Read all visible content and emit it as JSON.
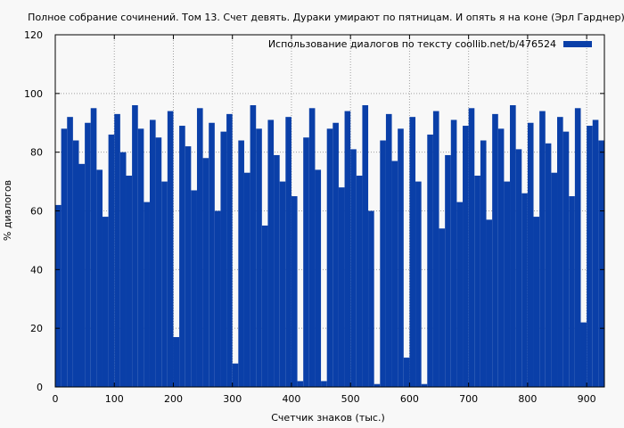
{
  "chart_data": {
    "type": "bar",
    "title": "Полное собрание сочинений. Том 13. Счет девять. Дураки умирают по пятницам. И опять я на коне (Эрл Гарднер)",
    "xlabel": "Счетчик знаков (тыс.)",
    "ylabel": "% диалогов",
    "xlim": [
      0,
      930
    ],
    "ylim": [
      0,
      120
    ],
    "xticks": [
      0,
      100,
      200,
      300,
      400,
      500,
      600,
      700,
      800,
      900
    ],
    "yticks": [
      0,
      20,
      40,
      60,
      80,
      100,
      120
    ],
    "grid": true,
    "legend_position": "top-right",
    "colors": {
      "series": "#0a3fa8",
      "grid": "#a0a0a0",
      "background": "#f8f8f8"
    },
    "series": [
      {
        "name": "Использование диалогов по тексту  coollib.net/b/476524",
        "x": [
          0,
          10,
          20,
          30,
          40,
          50,
          60,
          70,
          80,
          90,
          100,
          110,
          120,
          130,
          140,
          150,
          160,
          170,
          180,
          190,
          200,
          210,
          220,
          230,
          240,
          250,
          260,
          270,
          280,
          290,
          300,
          310,
          320,
          330,
          340,
          350,
          360,
          370,
          380,
          390,
          400,
          410,
          420,
          430,
          440,
          450,
          460,
          470,
          480,
          490,
          500,
          510,
          520,
          530,
          540,
          550,
          560,
          570,
          580,
          590,
          600,
          610,
          620,
          630,
          640,
          650,
          660,
          670,
          680,
          690,
          700,
          710,
          720,
          730,
          740,
          750,
          760,
          770,
          780,
          790,
          800,
          810,
          820,
          830,
          840,
          850,
          860,
          870,
          880,
          890,
          900,
          910,
          920
        ],
        "values": [
          62,
          88,
          92,
          84,
          76,
          90,
          95,
          74,
          58,
          86,
          93,
          80,
          72,
          96,
          88,
          63,
          91,
          85,
          70,
          94,
          17,
          89,
          82,
          67,
          95,
          78,
          90,
          60,
          87,
          93,
          8,
          84,
          73,
          96,
          88,
          55,
          91,
          79,
          70,
          92,
          65,
          2,
          85,
          95,
          74,
          2,
          88,
          90,
          68,
          94,
          81,
          72,
          96,
          60,
          1,
          84,
          93,
          77,
          88,
          10,
          92,
          70,
          1,
          86,
          94,
          54,
          79,
          91,
          63,
          89,
          95,
          72,
          84,
          57,
          93,
          88,
          70,
          96,
          81,
          66,
          90,
          58,
          94,
          83,
          73,
          92,
          87,
          65,
          95,
          22,
          89,
          91,
          84
        ]
      }
    ]
  }
}
